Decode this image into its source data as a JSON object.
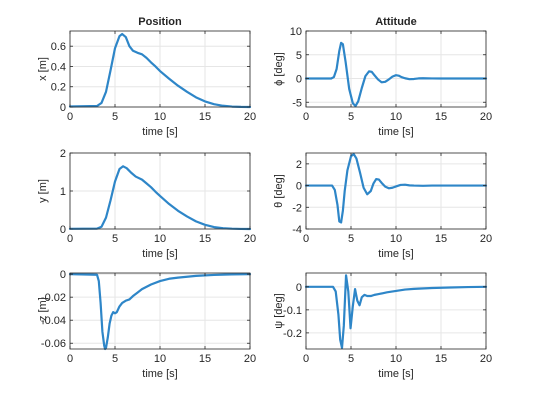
{
  "figure": {
    "background": "#ffffff",
    "line_color": "#2e86c8"
  },
  "chart_data": [
    {
      "id": "x-plot",
      "type": "line",
      "title": "Position",
      "xlabel": "time [s]",
      "ylabel": "x [m]",
      "xlim": [
        0,
        20
      ],
      "ylim": [
        0,
        0.75
      ],
      "xticks": [
        0,
        5,
        10,
        15,
        20
      ],
      "yticks": [
        0,
        0.2,
        0.4,
        0.6
      ],
      "ytick_labels": [
        "0",
        "0.2",
        "0.4",
        "0.6"
      ],
      "grid": true,
      "series": [
        {
          "x": [
            0,
            3,
            3.5,
            4,
            4.5,
            5,
            5.5,
            5.8,
            6.2,
            6.6,
            7,
            7.5,
            8,
            8.5,
            9,
            9.5,
            10,
            11,
            12,
            13,
            14,
            15,
            16,
            17,
            18,
            19,
            20
          ],
          "y": [
            0.005,
            0.01,
            0.04,
            0.15,
            0.36,
            0.58,
            0.7,
            0.72,
            0.69,
            0.6,
            0.555,
            0.535,
            0.52,
            0.485,
            0.44,
            0.4,
            0.355,
            0.28,
            0.21,
            0.15,
            0.095,
            0.055,
            0.028,
            0.012,
            0.004,
            0.001,
            0.0
          ]
        }
      ]
    },
    {
      "id": "phi-plot",
      "type": "line",
      "title": "Attitude",
      "xlabel": "time [s]",
      "ylabel": "ϕ [deg]",
      "xlim": [
        0,
        20
      ],
      "ylim": [
        -6,
        10
      ],
      "xticks": [
        0,
        5,
        10,
        15,
        20
      ],
      "yticks": [
        -5,
        0,
        5,
        10
      ],
      "ytick_labels": [
        "-5",
        "0",
        "5",
        "10"
      ],
      "grid": true,
      "series": [
        {
          "x": [
            0,
            2.8,
            3.1,
            3.4,
            3.7,
            3.9,
            4.1,
            4.4,
            4.8,
            5.2,
            5.5,
            5.8,
            6.2,
            6.6,
            7,
            7.3,
            7.6,
            8,
            8.4,
            8.8,
            9.2,
            9.6,
            10,
            10.3,
            10.6,
            11,
            11.5,
            12,
            12.5,
            13,
            14,
            15,
            16,
            18,
            20
          ],
          "y": [
            0,
            0,
            0.3,
            2,
            5.8,
            7.5,
            7.2,
            3.5,
            -2.2,
            -5.2,
            -5.8,
            -4.8,
            -2,
            0.5,
            1.5,
            1.4,
            0.7,
            -0.2,
            -0.8,
            -0.7,
            -0.2,
            0.4,
            0.7,
            0.6,
            0.3,
            0.05,
            -0.15,
            -0.1,
            0.02,
            0.05,
            0.01,
            0,
            0,
            0,
            0
          ]
        }
      ]
    },
    {
      "id": "y-plot",
      "type": "line",
      "title": "",
      "xlabel": "time [s]",
      "ylabel": "y [m]",
      "xlim": [
        0,
        20
      ],
      "ylim": [
        0,
        2
      ],
      "xticks": [
        0,
        5,
        10,
        15,
        20
      ],
      "yticks": [
        0,
        1,
        2
      ],
      "ytick_labels": [
        "0",
        "1",
        "2"
      ],
      "grid": true,
      "series": [
        {
          "x": [
            0,
            3,
            3.5,
            4,
            4.5,
            5,
            5.5,
            5.9,
            6.3,
            6.8,
            7.3,
            8,
            8.5,
            9,
            9.5,
            10,
            11,
            12,
            13,
            14,
            15,
            16,
            17,
            18,
            19,
            20
          ],
          "y": [
            0.005,
            0.01,
            0.06,
            0.3,
            0.75,
            1.25,
            1.58,
            1.65,
            1.6,
            1.48,
            1.38,
            1.3,
            1.2,
            1.1,
            0.98,
            0.87,
            0.66,
            0.48,
            0.33,
            0.2,
            0.11,
            0.05,
            0.02,
            0.008,
            0.002,
            0.0
          ]
        }
      ]
    },
    {
      "id": "theta-plot",
      "type": "line",
      "title": "",
      "xlabel": "time [s]",
      "ylabel": "θ [deg]",
      "xlim": [
        0,
        20
      ],
      "ylim": [
        -4,
        3
      ],
      "xticks": [
        0,
        5,
        10,
        15,
        20
      ],
      "yticks": [
        -4,
        -2,
        0,
        2
      ],
      "ytick_labels": [
        "-4",
        "-2",
        "0",
        "2"
      ],
      "grid": true,
      "series": [
        {
          "x": [
            0,
            2.9,
            3.2,
            3.5,
            3.7,
            3.9,
            4.1,
            4.3,
            4.6,
            5,
            5.3,
            5.6,
            6,
            6.4,
            6.8,
            7.2,
            7.5,
            7.8,
            8.1,
            8.4,
            8.8,
            9.2,
            9.6,
            10,
            10.5,
            11,
            11.5,
            12,
            13,
            14,
            16,
            18,
            20
          ],
          "y": [
            0,
            0,
            -0.4,
            -1.8,
            -3.3,
            -3.4,
            -2.3,
            -0.5,
            1.4,
            2.7,
            2.9,
            2.5,
            1.2,
            -0.2,
            -0.8,
            -0.5,
            0.2,
            0.6,
            0.55,
            0.25,
            -0.1,
            -0.25,
            -0.2,
            -0.08,
            0.06,
            0.08,
            0.02,
            0.0,
            -0.02,
            0,
            0,
            0,
            0
          ]
        }
      ]
    },
    {
      "id": "z-plot",
      "type": "line",
      "title": "",
      "xlabel": "time [s]",
      "ylabel": "-z [m]",
      "xlim": [
        0,
        20
      ],
      "ylim": [
        -0.065,
        0.001
      ],
      "xticks": [
        0,
        5,
        10,
        15,
        20
      ],
      "yticks": [
        0,
        -0.02,
        -0.04,
        -0.06
      ],
      "ytick_labels": [
        "0",
        "-0.02",
        "-0.04",
        "-0.06"
      ],
      "grid": true,
      "series": [
        {
          "x": [
            0,
            3,
            3.2,
            3.4,
            3.6,
            3.8,
            3.9,
            4.0,
            4.2,
            4.4,
            4.6,
            4.8,
            5.0,
            5.2,
            5.5,
            5.8,
            6.2,
            6.6,
            7,
            7.5,
            8,
            9,
            10,
            11,
            12,
            14,
            16,
            18,
            20
          ],
          "y": [
            0,
            -0.0005,
            -0.006,
            -0.025,
            -0.05,
            -0.062,
            -0.065,
            -0.064,
            -0.055,
            -0.043,
            -0.036,
            -0.033,
            -0.034,
            -0.033,
            -0.028,
            -0.025,
            -0.023,
            -0.022,
            -0.019,
            -0.016,
            -0.013,
            -0.009,
            -0.006,
            -0.004,
            -0.003,
            -0.0015,
            -0.0007,
            -0.0002,
            0
          ]
        }
      ]
    },
    {
      "id": "psi-plot",
      "type": "line",
      "title": "",
      "xlabel": "time [s]",
      "ylabel": "ψ [deg]",
      "xlim": [
        0,
        20
      ],
      "ylim": [
        -0.27,
        0.06
      ],
      "xticks": [
        0,
        5,
        10,
        15,
        20
      ],
      "yticks": [
        0,
        -0.1,
        -0.2
      ],
      "ytick_labels": [
        "0",
        "-0.1",
        "-0.2"
      ],
      "grid": true,
      "series": [
        {
          "x": [
            0,
            3,
            3.3,
            3.6,
            3.8,
            4.0,
            4.2,
            4.45,
            4.7,
            4.95,
            5.2,
            5.45,
            5.7,
            5.95,
            6.2,
            6.5,
            6.8,
            7.2,
            7.6,
            8,
            8.5,
            9,
            10,
            11,
            12,
            14,
            16,
            18,
            20
          ],
          "y": [
            0,
            0,
            -0.02,
            -0.12,
            -0.23,
            -0.265,
            -0.17,
            0.05,
            -0.02,
            -0.18,
            -0.085,
            -0.01,
            -0.06,
            -0.08,
            -0.045,
            -0.035,
            -0.04,
            -0.04,
            -0.035,
            -0.032,
            -0.028,
            -0.024,
            -0.018,
            -0.012,
            -0.009,
            -0.005,
            -0.003,
            -0.001,
            0
          ]
        }
      ]
    }
  ]
}
